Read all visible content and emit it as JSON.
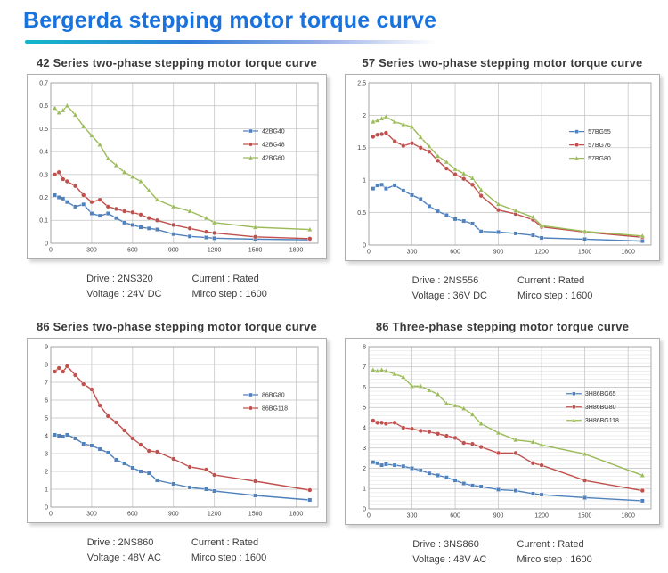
{
  "page": {
    "title": "Bergerda stepping motor torque curve",
    "title_color": "#1a73dd",
    "accent_colors": [
      "#12b7c9",
      "#2f7bd8",
      "#8fa9e6"
    ]
  },
  "series_colors": {
    "blue": "#4f81bd",
    "red": "#c0504d",
    "green": "#9bbb59"
  },
  "chart_data": [
    {
      "type": "line",
      "title": "42 Series two-phase stepping motor torque curve",
      "xlabel": "",
      "ylabel": "",
      "xlim": [
        0,
        1960
      ],
      "ylim": [
        0,
        0.7
      ],
      "xticks": [
        0,
        300,
        600,
        900,
        1200,
        1500,
        1800
      ],
      "ytick_step": 0.1,
      "minor_ytick_step": 0,
      "grid": true,
      "legend_position": "middle-right",
      "legend": {
        "x": 0.72,
        "y": 0.3
      },
      "x": [
        30,
        60,
        90,
        120,
        180,
        240,
        300,
        360,
        420,
        480,
        540,
        600,
        660,
        720,
        780,
        900,
        1020,
        1140,
        1200,
        1500,
        1900
      ],
      "series": [
        {
          "name": "42BG40",
          "color": "#4f81bd",
          "marker": "square",
          "values": [
            0.21,
            0.2,
            0.195,
            0.18,
            0.16,
            0.17,
            0.13,
            0.12,
            0.13,
            0.11,
            0.09,
            0.08,
            0.07,
            0.065,
            0.06,
            0.04,
            0.03,
            0.025,
            0.022,
            0.018,
            0.015
          ]
        },
        {
          "name": "42BG48",
          "color": "#c0504d",
          "marker": "circle",
          "values": [
            0.3,
            0.31,
            0.28,
            0.27,
            0.25,
            0.21,
            0.18,
            0.19,
            0.16,
            0.15,
            0.14,
            0.135,
            0.125,
            0.11,
            0.1,
            0.08,
            0.065,
            0.05,
            0.045,
            0.028,
            0.02
          ]
        },
        {
          "name": "42BG60",
          "color": "#9bbb59",
          "marker": "triangle",
          "values": [
            0.59,
            0.57,
            0.58,
            0.6,
            0.56,
            0.51,
            0.47,
            0.43,
            0.37,
            0.34,
            0.31,
            0.29,
            0.27,
            0.23,
            0.19,
            0.16,
            0.14,
            0.11,
            0.09,
            0.07,
            0.06
          ]
        }
      ],
      "caption": {
        "line1": "Drive : 2NS320",
        "line2": "Voltage : 24V DC",
        "line3": "Current : Rated",
        "line4": "Mirco step : 1600"
      }
    },
    {
      "type": "line",
      "title": "57 Series two-phase stepping motor torque curve",
      "xlabel": "",
      "ylabel": "",
      "xlim": [
        0,
        1960
      ],
      "ylim": [
        0,
        2.5
      ],
      "xticks": [
        0,
        300,
        600,
        900,
        1200,
        1500,
        1800
      ],
      "ytick_step": 0.5,
      "minor_ytick_step": 0,
      "grid": true,
      "legend_position": "middle-right",
      "legend": {
        "x": 0.71,
        "y": 0.3
      },
      "x": [
        30,
        60,
        90,
        120,
        180,
        240,
        300,
        360,
        420,
        480,
        540,
        600,
        660,
        720,
        780,
        900,
        1020,
        1140,
        1200,
        1500,
        1900
      ],
      "series": [
        {
          "name": "57BG55",
          "color": "#4f81bd",
          "marker": "square",
          "values": [
            0.87,
            0.92,
            0.93,
            0.87,
            0.92,
            0.84,
            0.77,
            0.71,
            0.6,
            0.52,
            0.46,
            0.4,
            0.37,
            0.33,
            0.21,
            0.2,
            0.18,
            0.15,
            0.11,
            0.09,
            0.06
          ]
        },
        {
          "name": "57BG76",
          "color": "#c0504d",
          "marker": "circle",
          "values": [
            1.67,
            1.7,
            1.71,
            1.73,
            1.6,
            1.53,
            1.57,
            1.5,
            1.44,
            1.3,
            1.18,
            1.09,
            1.02,
            0.93,
            0.76,
            0.54,
            0.48,
            0.39,
            0.28,
            0.2,
            0.12
          ]
        },
        {
          "name": "57BG80",
          "color": "#9bbb59",
          "marker": "triangle",
          "values": [
            1.9,
            1.92,
            1.95,
            1.98,
            1.9,
            1.86,
            1.82,
            1.66,
            1.52,
            1.37,
            1.28,
            1.17,
            1.1,
            1.03,
            0.85,
            0.63,
            0.53,
            0.43,
            0.3,
            0.21,
            0.14
          ]
        }
      ],
      "caption": {
        "line1": "Drive : 2NS556",
        "line2": "Voltage : 36V DC",
        "line3": "Current : Rated",
        "line4": "Mirco step : 1600"
      }
    },
    {
      "type": "line",
      "title": "86 Series two-phase stepping motor torque curve",
      "xlabel": "",
      "ylabel": "",
      "xlim": [
        0,
        1960
      ],
      "ylim": [
        0,
        9
      ],
      "xticks": [
        0,
        300,
        600,
        900,
        1200,
        1500,
        1800
      ],
      "ytick_step": 1,
      "minor_ytick_step": 0,
      "grid": true,
      "legend_position": "middle-right",
      "legend": {
        "x": 0.72,
        "y": 0.3
      },
      "x": [
        30,
        60,
        90,
        120,
        180,
        240,
        300,
        360,
        420,
        480,
        540,
        600,
        660,
        720,
        780,
        900,
        1020,
        1140,
        1200,
        1500,
        1900
      ],
      "series": [
        {
          "name": "86BG80",
          "color": "#4f81bd",
          "marker": "square",
          "values": [
            4.05,
            4.0,
            3.95,
            4.05,
            3.85,
            3.55,
            3.45,
            3.25,
            3.05,
            2.65,
            2.45,
            2.2,
            2.0,
            1.9,
            1.5,
            1.3,
            1.1,
            1.0,
            0.9,
            0.65,
            0.4
          ]
        },
        {
          "name": "86BG118",
          "color": "#c0504d",
          "marker": "circle",
          "values": [
            7.6,
            7.8,
            7.6,
            7.9,
            7.4,
            6.9,
            6.6,
            5.7,
            5.1,
            4.75,
            4.3,
            3.85,
            3.5,
            3.15,
            3.1,
            2.7,
            2.25,
            2.1,
            1.8,
            1.45,
            0.95
          ]
        }
      ],
      "caption": {
        "line1": "Drive : 2NS860",
        "line2": "Voltage : 48V AC",
        "line3": "Current : Rated",
        "line4": "Mirco step : 1600"
      }
    },
    {
      "type": "line",
      "title": "86 Three-phase stepping motor torque curve",
      "xlabel": "",
      "ylabel": "",
      "xlim": [
        0,
        1960
      ],
      "ylim": [
        0,
        8
      ],
      "xticks": [
        0,
        300,
        600,
        900,
        1200,
        1500,
        1800
      ],
      "ytick_step": 1,
      "minor_ytick_step": 0.2,
      "grid": true,
      "legend_position": "middle-right",
      "legend": {
        "x": 0.7,
        "y": 0.29
      },
      "x": [
        30,
        60,
        90,
        120,
        180,
        240,
        300,
        360,
        420,
        480,
        540,
        600,
        660,
        720,
        780,
        900,
        1020,
        1140,
        1200,
        1500,
        1900
      ],
      "series": [
        {
          "name": "3H86BG65",
          "color": "#4f81bd",
          "marker": "square",
          "values": [
            2.3,
            2.25,
            2.15,
            2.2,
            2.15,
            2.1,
            2.0,
            1.9,
            1.75,
            1.65,
            1.55,
            1.4,
            1.25,
            1.15,
            1.1,
            0.95,
            0.9,
            0.75,
            0.7,
            0.55,
            0.4
          ]
        },
        {
          "name": "3H86BG80",
          "color": "#c0504d",
          "marker": "circle",
          "values": [
            4.35,
            4.25,
            4.25,
            4.2,
            4.25,
            4.0,
            3.95,
            3.85,
            3.8,
            3.7,
            3.6,
            3.5,
            3.25,
            3.2,
            3.05,
            2.75,
            2.75,
            2.25,
            2.15,
            1.4,
            0.9
          ]
        },
        {
          "name": "3H86BG118",
          "color": "#9bbb59",
          "marker": "triangle",
          "values": [
            6.85,
            6.8,
            6.85,
            6.8,
            6.65,
            6.5,
            6.05,
            6.05,
            5.85,
            5.65,
            5.2,
            5.1,
            4.95,
            4.65,
            4.2,
            3.75,
            3.4,
            3.3,
            3.15,
            2.7,
            1.65
          ]
        }
      ],
      "caption": {
        "line1": "Drive : 3NS860",
        "line2": "Voltage : 48V AC",
        "line3": "Current : Rated",
        "line4": "Mirco step : 1600"
      }
    }
  ]
}
